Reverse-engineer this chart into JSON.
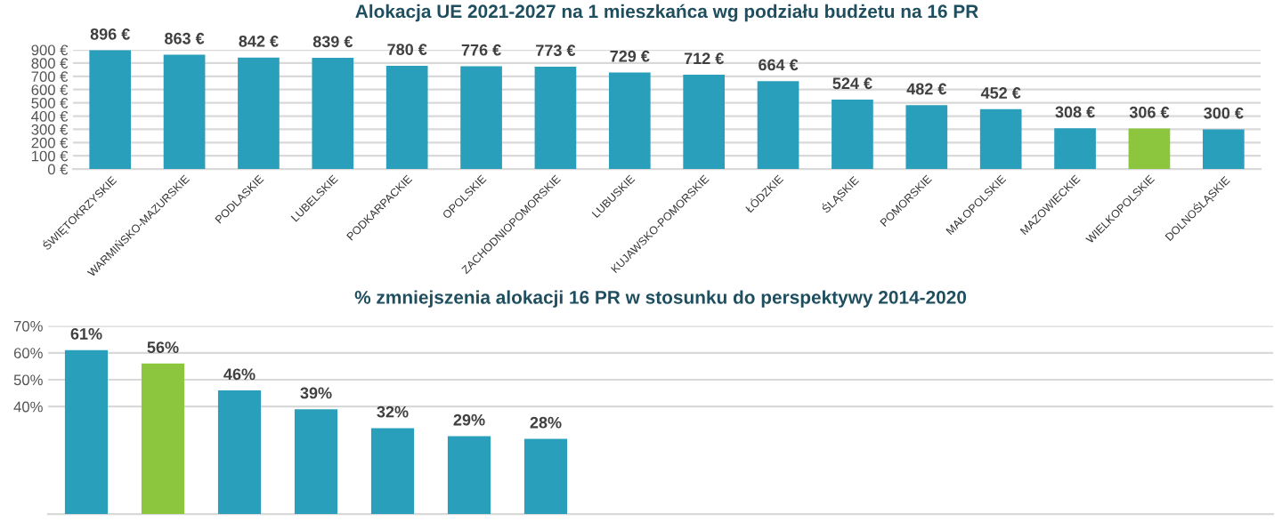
{
  "chart_data": [
    {
      "type": "bar",
      "title": "Alokacja UE 2021-2027 na 1 mieszkańca wg podziału budżetu na 16 PR",
      "categories": [
        "ŚWIĘTOKRZYSKIE",
        "WARMIŃSKO-MAZURSKIE",
        "PODLASKIE",
        "LUBELSKIE",
        "PODKARPACKIE",
        "OPOLSKIE",
        "ZACHODNIOPOMORSKIE",
        "LUBUSKIE",
        "KUJAWSKO-POMORSKIE",
        "ŁÓDZKIE",
        "ŚLĄSKIE",
        "POMORSKIE",
        "MAŁOPOLSKIE",
        "MAZOWIECKIE",
        "WIELKOPOLSKIE",
        "DOLNOŚLĄSKIE"
      ],
      "values": [
        896,
        863,
        842,
        839,
        780,
        776,
        773,
        729,
        712,
        664,
        524,
        482,
        452,
        308,
        306,
        300
      ],
      "value_labels": [
        "896 €",
        "863 €",
        "842 €",
        "839 €",
        "780 €",
        "776 €",
        "773 €",
        "729 €",
        "712 €",
        "664 €",
        "524 €",
        "482 €",
        "452 €",
        "308 €",
        "306 €",
        "300 €"
      ],
      "colors": [
        "#2a9fbc",
        "#2a9fbc",
        "#2a9fbc",
        "#2a9fbc",
        "#2a9fbc",
        "#2a9fbc",
        "#2a9fbc",
        "#2a9fbc",
        "#2a9fbc",
        "#2a9fbc",
        "#2a9fbc",
        "#2a9fbc",
        "#2a9fbc",
        "#2a9fbc",
        "#8cc63f",
        "#2a9fbc"
      ],
      "ylim": [
        0,
        900
      ],
      "yticks": [
        {
          "value": 0,
          "label": "0 €"
        },
        {
          "value": 100,
          "label": "100 €"
        },
        {
          "value": 200,
          "label": "200 €"
        },
        {
          "value": 300,
          "label": "300 €"
        },
        {
          "value": 400,
          "label": "400 €"
        },
        {
          "value": 500,
          "label": "500 €"
        },
        {
          "value": 600,
          "label": "600 €"
        },
        {
          "value": 700,
          "label": "700 €"
        },
        {
          "value": 800,
          "label": "800 €"
        },
        {
          "value": 900,
          "label": "900 €"
        }
      ],
      "grid": "y"
    },
    {
      "type": "bar",
      "title": "% zmniejszenia alokacji 16 PR w stosunku do perspektywy 2014-2020",
      "categories": [
        null,
        null,
        null,
        null,
        null,
        null,
        null
      ],
      "values": [
        61,
        56,
        46,
        39,
        32,
        29,
        28
      ],
      "value_labels": [
        "61%",
        "56%",
        "46%",
        "39%",
        "32%",
        "29%",
        "28%"
      ],
      "colors": [
        "#2a9fbc",
        "#8cc63f",
        "#2a9fbc",
        "#2a9fbc",
        "#2a9fbc",
        "#2a9fbc",
        "#2a9fbc"
      ],
      "ylim": [
        0,
        70
      ],
      "yticks": [
        {
          "value": 40,
          "label": "40%"
        },
        {
          "value": 50,
          "label": "50%"
        },
        {
          "value": 60,
          "label": "60%"
        },
        {
          "value": 70,
          "label": "70%"
        }
      ],
      "grid": "y"
    }
  ]
}
